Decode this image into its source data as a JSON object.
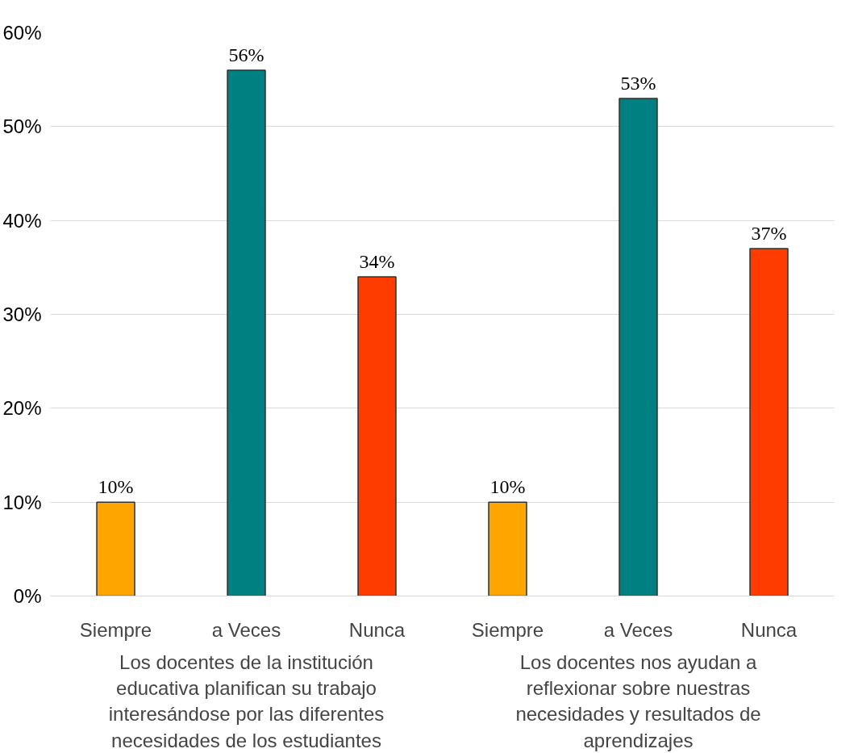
{
  "chart_data": {
    "type": "bar",
    "categories": [
      "Siempre",
      "a Veces",
      "Nunca",
      "Siempre",
      "a Veces",
      "Nunca"
    ],
    "values": [
      10,
      56,
      34,
      10,
      53,
      37
    ],
    "value_labels": [
      "10%",
      "56%",
      "34%",
      "10%",
      "53%",
      "37%"
    ],
    "colors": [
      "#ffa500",
      "#008080",
      "#ff3c00",
      "#ffa500",
      "#008080",
      "#ff3c00"
    ],
    "ylim": [
      0,
      60
    ],
    "yticks": [
      {
        "value": 0,
        "label": "0%"
      },
      {
        "value": 10,
        "label": "10%"
      },
      {
        "value": 20,
        "label": "20%"
      },
      {
        "value": 30,
        "label": "30%"
      },
      {
        "value": 40,
        "label": "40%"
      },
      {
        "value": 50,
        "label": "50%"
      },
      {
        "value": 60,
        "label": "60%"
      }
    ],
    "grid": "y",
    "annotations": [
      "Los docentes de la institución educativa planifican su trabajo interesándose por las diferentes necesidades de los estudiantes",
      "Los docentes nos ayudan a reflexionar sobre nuestras necesidades y resultados de aprendizajes"
    ]
  }
}
